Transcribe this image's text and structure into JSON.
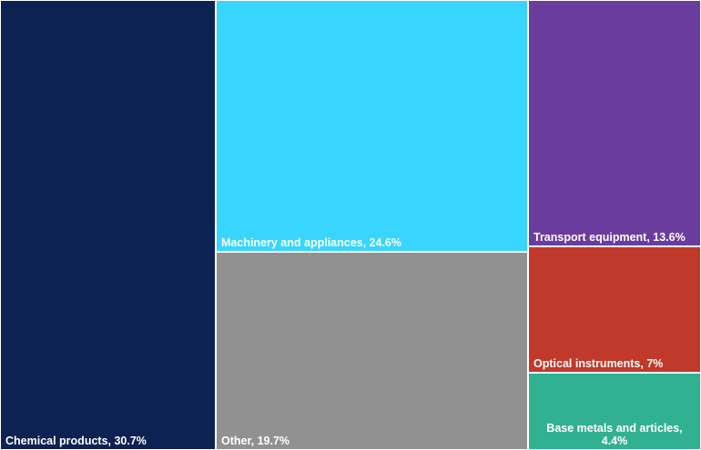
{
  "chart_data": {
    "type": "treemap",
    "title": "",
    "tiles": [
      {
        "label": "Chemical products, 30.7%",
        "name": "Chemical products",
        "value": 30.7,
        "color": "#0c2253"
      },
      {
        "label": "Machinery and appliances, 24.6%",
        "name": "Machinery and appliances",
        "value": 24.6,
        "color": "#38d5ff"
      },
      {
        "label": "Other, 19.7%",
        "name": "Other",
        "value": 19.7,
        "color": "#919191"
      },
      {
        "label": "Transport equipment, 13.6%",
        "name": "Transport equipment",
        "value": 13.6,
        "color": "#6a3c9e"
      },
      {
        "label": "Optical instruments, 7%",
        "name": "Optical instruments",
        "value": 7,
        "color": "#c0392b"
      },
      {
        "label": "Base metals and articles, 4.4%",
        "name": "Base metals and articles",
        "value": 4.4,
        "color": "#31b192"
      }
    ]
  }
}
